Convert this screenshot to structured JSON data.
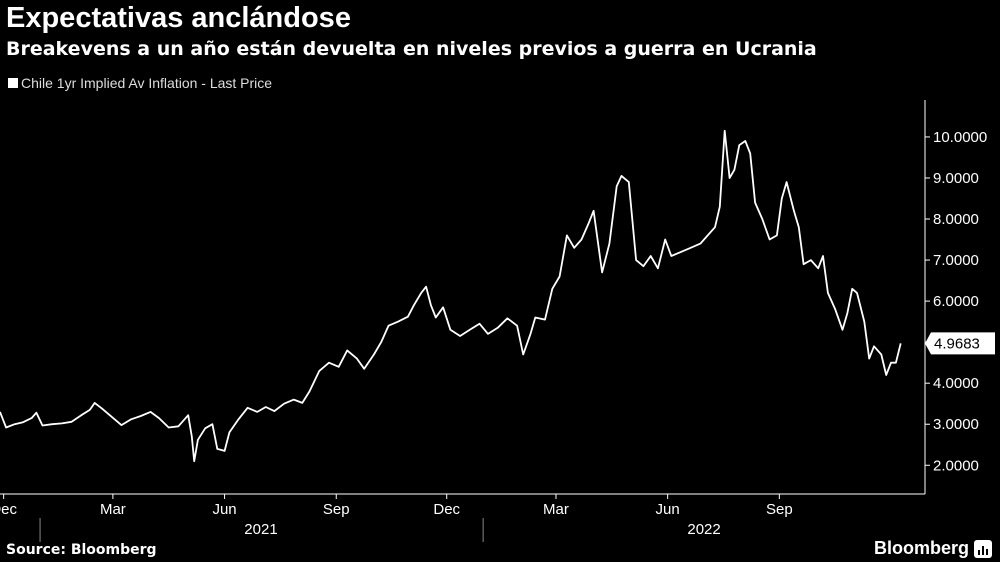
{
  "header": {
    "title": "Expectativas anclándose",
    "subtitle": "Breakevens a un año están devuelta en niveles previos a guerra en Ucrania"
  },
  "footer": {
    "source": "Source: Bloomberg",
    "brand": "Bloomberg"
  },
  "chart_data": {
    "type": "line",
    "title": "Expectativas anclándose",
    "subtitle": "Breakevens a un año están devuelta en niveles previos a guerra en Ucrania",
    "xlabel": "",
    "ylabel": "",
    "ylim": [
      1.3,
      10.9
    ],
    "xlim": [
      "2020-11-28",
      "2022-12-30"
    ],
    "grid": false,
    "legend_position": "top-left",
    "colors": {
      "background": "#000000",
      "line": "#ffffff",
      "text": "#ffffff"
    },
    "y_ticks": [
      "2.0000",
      "3.0000",
      "4.0000",
      "5.0000",
      "6.0000",
      "7.0000",
      "8.0000",
      "9.0000",
      "10.0000"
    ],
    "x_ticks": [
      {
        "label": "Dec",
        "date": "2020-12-01"
      },
      {
        "label": "Mar",
        "date": "2021-03-01"
      },
      {
        "label": "Jun",
        "date": "2021-06-01"
      },
      {
        "label": "Sep",
        "date": "2021-09-01"
      },
      {
        "label": "Dec",
        "date": "2021-12-01"
      },
      {
        "label": "Mar",
        "date": "2022-03-01"
      },
      {
        "label": "Jun",
        "date": "2022-06-01"
      },
      {
        "label": "Sep",
        "date": "2022-09-01"
      }
    ],
    "year_labels": [
      {
        "label": "2021",
        "date": "2021-07-01"
      },
      {
        "label": "2022",
        "date": "2022-07-01"
      }
    ],
    "year_dividers": [
      "2020-12-31",
      "2021-12-31"
    ],
    "last_value_label": "4.9683",
    "series": [
      {
        "name": "Chile 1yr Implied Av Inflation - Last Price",
        "points": [
          [
            "2020-11-28",
            3.3
          ],
          [
            "2020-12-03",
            2.92
          ],
          [
            "2020-12-10",
            3.0
          ],
          [
            "2020-12-17",
            3.05
          ],
          [
            "2020-12-24",
            3.15
          ],
          [
            "2020-12-28",
            3.28
          ],
          [
            "2021-01-02",
            2.97
          ],
          [
            "2021-01-10",
            3.0
          ],
          [
            "2021-01-18",
            3.02
          ],
          [
            "2021-01-26",
            3.06
          ],
          [
            "2021-02-03",
            3.22
          ],
          [
            "2021-02-10",
            3.35
          ],
          [
            "2021-02-14",
            3.52
          ],
          [
            "2021-02-20",
            3.38
          ],
          [
            "2021-02-28",
            3.18
          ],
          [
            "2021-03-08",
            2.98
          ],
          [
            "2021-03-16",
            3.12
          ],
          [
            "2021-03-24",
            3.2
          ],
          [
            "2021-04-01",
            3.3
          ],
          [
            "2021-04-08",
            3.15
          ],
          [
            "2021-04-16",
            2.92
          ],
          [
            "2021-04-24",
            2.95
          ],
          [
            "2021-05-02",
            3.22
          ],
          [
            "2021-05-05",
            2.7
          ],
          [
            "2021-05-07",
            2.1
          ],
          [
            "2021-05-10",
            2.62
          ],
          [
            "2021-05-16",
            2.9
          ],
          [
            "2021-05-22",
            3.0
          ],
          [
            "2021-05-26",
            2.4
          ],
          [
            "2021-06-01",
            2.35
          ],
          [
            "2021-06-05",
            2.8
          ],
          [
            "2021-06-12",
            3.1
          ],
          [
            "2021-06-20",
            3.4
          ],
          [
            "2021-06-28",
            3.3
          ],
          [
            "2021-07-05",
            3.42
          ],
          [
            "2021-07-12",
            3.32
          ],
          [
            "2021-07-20",
            3.5
          ],
          [
            "2021-07-28",
            3.6
          ],
          [
            "2021-08-04",
            3.52
          ],
          [
            "2021-08-10",
            3.8
          ],
          [
            "2021-08-18",
            4.3
          ],
          [
            "2021-08-26",
            4.5
          ],
          [
            "2021-09-03",
            4.4
          ],
          [
            "2021-09-10",
            4.8
          ],
          [
            "2021-09-18",
            4.6
          ],
          [
            "2021-09-24",
            4.35
          ],
          [
            "2021-10-02",
            4.7
          ],
          [
            "2021-10-08",
            5.0
          ],
          [
            "2021-10-14",
            5.4
          ],
          [
            "2021-10-22",
            5.5
          ],
          [
            "2021-10-30",
            5.62
          ],
          [
            "2021-11-04",
            5.9
          ],
          [
            "2021-11-10",
            6.2
          ],
          [
            "2021-11-14",
            6.35
          ],
          [
            "2021-11-18",
            5.9
          ],
          [
            "2021-11-22",
            5.6
          ],
          [
            "2021-11-28",
            5.85
          ],
          [
            "2021-12-04",
            5.3
          ],
          [
            "2021-12-12",
            5.15
          ],
          [
            "2021-12-20",
            5.3
          ],
          [
            "2021-12-28",
            5.45
          ],
          [
            "2022-01-04",
            5.2
          ],
          [
            "2022-01-12",
            5.35
          ],
          [
            "2022-01-20",
            5.58
          ],
          [
            "2022-01-28",
            5.4
          ],
          [
            "2022-02-02",
            4.7
          ],
          [
            "2022-02-08",
            5.2
          ],
          [
            "2022-02-12",
            5.6
          ],
          [
            "2022-02-20",
            5.55
          ],
          [
            "2022-02-26",
            6.3
          ],
          [
            "2022-03-04",
            6.6
          ],
          [
            "2022-03-10",
            7.6
          ],
          [
            "2022-03-16",
            7.3
          ],
          [
            "2022-03-22",
            7.5
          ],
          [
            "2022-03-28",
            7.9
          ],
          [
            "2022-04-01",
            8.2
          ],
          [
            "2022-04-08",
            6.7
          ],
          [
            "2022-04-14",
            7.4
          ],
          [
            "2022-04-20",
            8.8
          ],
          [
            "2022-04-24",
            9.05
          ],
          [
            "2022-04-30",
            8.9
          ],
          [
            "2022-05-06",
            7.0
          ],
          [
            "2022-05-12",
            6.85
          ],
          [
            "2022-05-18",
            7.1
          ],
          [
            "2022-05-24",
            6.8
          ],
          [
            "2022-05-30",
            7.5
          ],
          [
            "2022-06-04",
            7.1
          ],
          [
            "2022-06-12",
            7.2
          ],
          [
            "2022-06-20",
            7.3
          ],
          [
            "2022-06-28",
            7.4
          ],
          [
            "2022-07-04",
            7.6
          ],
          [
            "2022-07-10",
            7.8
          ],
          [
            "2022-07-14",
            8.3
          ],
          [
            "2022-07-18",
            10.15
          ],
          [
            "2022-07-22",
            9.0
          ],
          [
            "2022-07-26",
            9.2
          ],
          [
            "2022-07-30",
            9.8
          ],
          [
            "2022-08-04",
            9.9
          ],
          [
            "2022-08-08",
            9.6
          ],
          [
            "2022-08-12",
            8.4
          ],
          [
            "2022-08-18",
            8.0
          ],
          [
            "2022-08-24",
            7.5
          ],
          [
            "2022-08-30",
            7.6
          ],
          [
            "2022-09-03",
            8.5
          ],
          [
            "2022-09-07",
            8.9
          ],
          [
            "2022-09-13",
            8.2
          ],
          [
            "2022-09-17",
            7.8
          ],
          [
            "2022-09-21",
            6.9
          ],
          [
            "2022-09-27",
            7.0
          ],
          [
            "2022-10-03",
            6.8
          ],
          [
            "2022-10-07",
            7.1
          ],
          [
            "2022-10-11",
            6.2
          ],
          [
            "2022-10-17",
            5.8
          ],
          [
            "2022-10-23",
            5.3
          ],
          [
            "2022-10-27",
            5.7
          ],
          [
            "2022-10-31",
            6.3
          ],
          [
            "2022-11-04",
            6.2
          ],
          [
            "2022-11-10",
            5.5
          ],
          [
            "2022-11-14",
            4.6
          ],
          [
            "2022-11-18",
            4.9
          ],
          [
            "2022-11-24",
            4.7
          ],
          [
            "2022-11-28",
            4.2
          ],
          [
            "2022-12-02",
            4.5
          ],
          [
            "2022-12-06",
            4.5
          ],
          [
            "2022-12-10",
            4.97
          ]
        ]
      }
    ]
  }
}
